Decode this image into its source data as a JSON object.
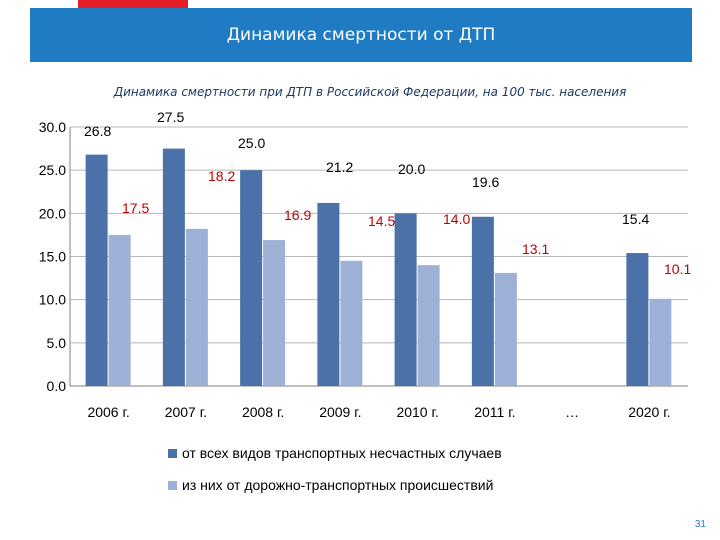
{
  "header": {
    "title": "Динамика смертности от ДТП"
  },
  "page_number": "31",
  "colors": {
    "accent": "#e31e24",
    "header": "#1e7bc4",
    "series1": "#4a72a8",
    "series2": "#9db1d6",
    "label_red": "#c00000"
  },
  "chart_data": {
    "type": "bar",
    "title": "Динамика смертности при ДТП в Российской Федерации, на 100 тыс. населения",
    "categories": [
      "2006 г.",
      "2007 г.",
      "2008 г.",
      "2009 г.",
      "2010 г.",
      "2011 г.",
      "…",
      "2020 г."
    ],
    "series": [
      {
        "name": "от всех видов транспортных несчастных случаев",
        "values": [
          26.8,
          27.5,
          25.0,
          21.2,
          20.0,
          19.6,
          null,
          15.4
        ]
      },
      {
        "name": "из них от дорожно-транспортных происшествий",
        "values": [
          17.5,
          18.2,
          16.9,
          14.5,
          14.0,
          13.1,
          null,
          10.1
        ]
      }
    ],
    "value_labels": [
      [
        "26.8",
        "27.5",
        "25.0",
        "21.2",
        "20.0",
        "19.6",
        "",
        "15.4"
      ],
      [
        "17.5",
        "18.2",
        "16.9",
        "14.5",
        "14.0",
        "13.1",
        "",
        "10.1"
      ]
    ],
    "ylim": [
      0,
      30
    ],
    "yticks": [
      "0.0",
      "5.0",
      "10.0",
      "15.0",
      "20.0",
      "25.0",
      "30.0"
    ],
    "grid": true,
    "legend_position": "bottom"
  }
}
